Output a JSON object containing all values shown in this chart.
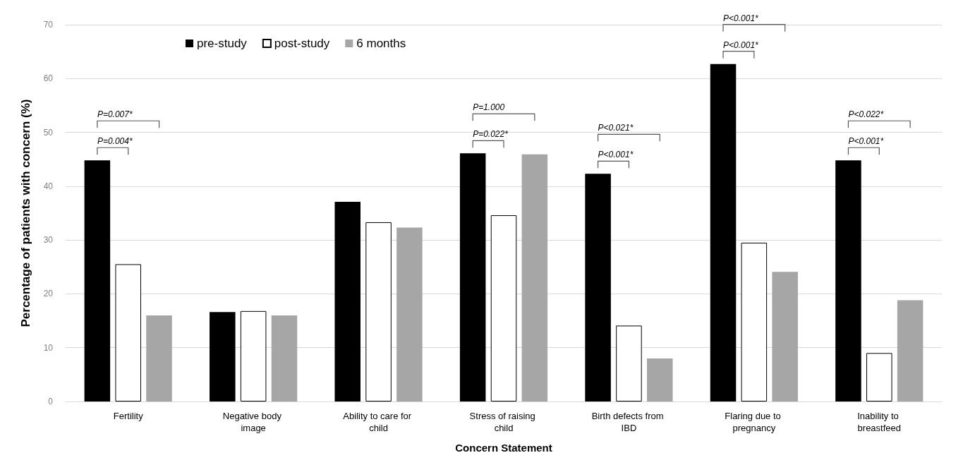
{
  "chart_data": {
    "type": "bar",
    "xlabel": "Concern Statement",
    "ylabel": "Percentage of patients with concern (%)",
    "categories": [
      "Fertility",
      "Negative body image",
      "Ability to care for child",
      "Stress of raising child",
      "Birth defects from IBD",
      "Flaring due to pregnancy",
      "Inability to breastfeed"
    ],
    "series": [
      {
        "name": "pre-study",
        "color": "#000000",
        "values": [
          44.8,
          16.6,
          37.1,
          46.1,
          42.3,
          62.7,
          44.8
        ]
      },
      {
        "name": "post-study",
        "color": "#ffffff",
        "values": [
          25.5,
          16.8,
          33.3,
          34.6,
          14.1,
          29.5,
          9.0
        ]
      },
      {
        "name": "6 months",
        "color": "#a6a6a6",
        "values": [
          16.0,
          16.0,
          32.3,
          45.9,
          8.0,
          24.1,
          18.8
        ]
      }
    ],
    "ylim": [
      0,
      70
    ],
    "yticks": [
      0,
      10,
      20,
      30,
      40,
      50,
      60,
      70
    ],
    "grid": "y",
    "legend": "top left",
    "annotations": [
      "P=0.004*",
      "P=0.007*",
      "P=0.022*",
      "P=1.000",
      "P<0.001*",
      "P<0.021*",
      "P<0.001*",
      "P<0.001*",
      "P<0.001*",
      "P<0.022*"
    ]
  }
}
